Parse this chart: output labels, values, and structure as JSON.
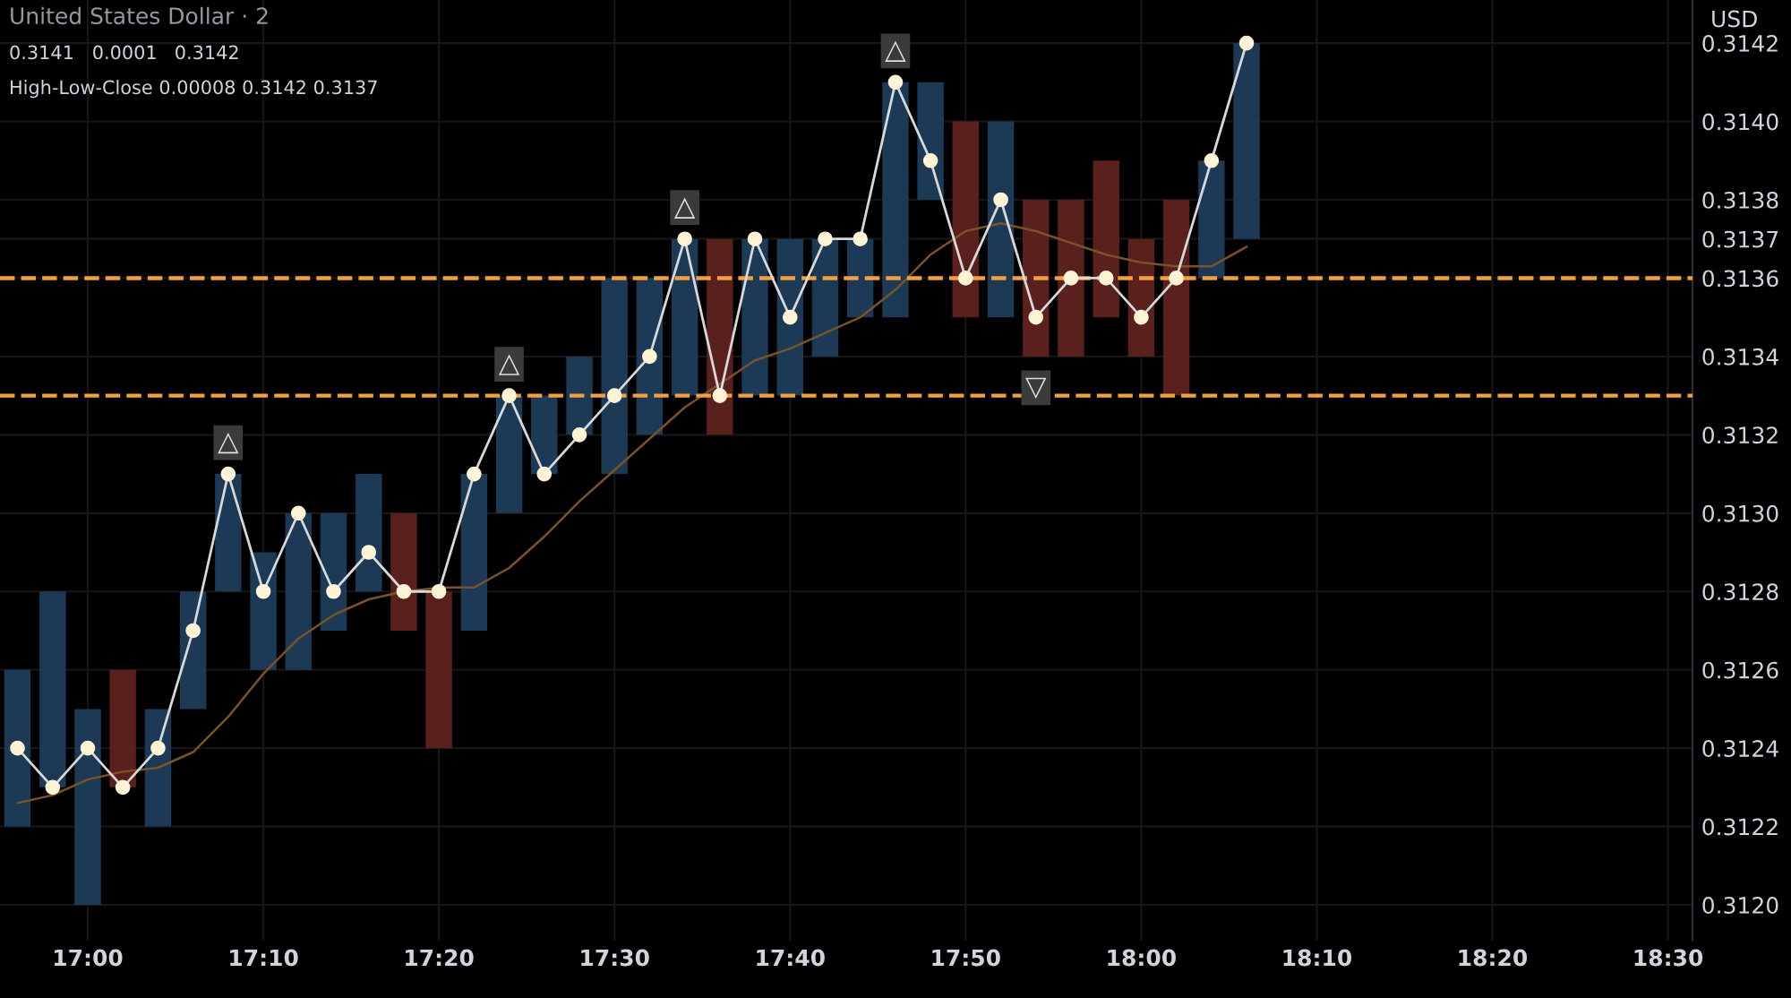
{
  "chart_data": {
    "type": "bar",
    "title": "United States Dollar · 2",
    "ylabel": "USD",
    "annotations": [
      "0.3141",
      "0.0001",
      "0.3142",
      "High-Low-Close 0.00008 0.3142 0.3137",
      {
        "text": "△",
        "x": 17.1333,
        "y": 0.31318
      },
      {
        "text": "△",
        "x": 17.4,
        "y": 0.31338
      },
      {
        "text": "△",
        "x": 17.5667,
        "y": 0.31378
      },
      {
        "text": "△",
        "x": 17.7667,
        "y": 0.31418
      },
      {
        "text": "▽",
        "x": 17.9,
        "y": 0.31332
      }
    ],
    "xlim": [
      16.9167,
      18.5233
    ],
    "xticks": [
      {
        "value": 17,
        "label": "17:00"
      },
      {
        "value": 17.1667,
        "label": "17:10"
      },
      {
        "value": 17.3333,
        "label": "17:20"
      },
      {
        "value": 17.5,
        "label": "17:30"
      },
      {
        "value": 17.6667,
        "label": "17:40"
      },
      {
        "value": 17.8333,
        "label": "17:50"
      },
      {
        "value": 18,
        "label": "18:00"
      },
      {
        "value": 18.1667,
        "label": "18:10"
      },
      {
        "value": 18.3333,
        "label": "18:20"
      },
      {
        "value": 18.5,
        "label": "18:30"
      }
    ],
    "ylim": [
      0.31191,
      0.31431
    ],
    "yticks": [
      {
        "value": 0.312,
        "label": "0.3120"
      },
      {
        "value": 0.3122,
        "label": "0.3122"
      },
      {
        "value": 0.3124,
        "label": "0.3124"
      },
      {
        "value": 0.3126,
        "label": "0.3126"
      },
      {
        "value": 0.3128,
        "label": "0.3128"
      },
      {
        "value": 0.313,
        "label": "0.3130"
      },
      {
        "value": 0.3132,
        "label": "0.3132"
      },
      {
        "value": 0.3134,
        "label": "0.3134"
      },
      {
        "value": 0.3136,
        "label": "0.3136"
      },
      {
        "value": 0.3137,
        "label": "0.3137"
      },
      {
        "value": 0.3138,
        "label": "0.3138"
      },
      {
        "value": 0.314,
        "label": "0.3140"
      },
      {
        "value": 0.3142,
        "label": "0.3142"
      }
    ],
    "grid": true,
    "ref_lines": [
      {
        "axis": "y",
        "value": 0.3136,
        "color": "#f0a040",
        "line_style": "dashed"
      },
      {
        "axis": "y",
        "value": 0.3133,
        "color": "#f0a040",
        "line_style": "dashed"
      }
    ],
    "series": [
      {
        "x": [
          16.9333,
          16.9667,
          17.0,
          17.0333,
          17.0667,
          17.1,
          17.1333,
          17.1667,
          17.2,
          17.2333,
          17.2667,
          17.3,
          17.3333,
          17.3667,
          17.4,
          17.4333,
          17.4667,
          17.5,
          17.5333,
          17.5667,
          17.6,
          17.6333,
          17.6667,
          17.7,
          17.7333,
          17.7667,
          17.8,
          17.8333,
          17.8667,
          17.9,
          17.9333,
          17.9667,
          18.0,
          18.0333,
          18.0667,
          18.1
        ],
        "base": [
          0.3122,
          0.3123,
          0.312,
          0.3123,
          0.3122,
          0.3125,
          0.3128,
          0.3126,
          0.3126,
          0.3127,
          0.3128,
          0.3127,
          0.3124,
          0.3127,
          0.313,
          0.3131,
          0.3132,
          0.3131,
          0.3132,
          0.3133,
          0.3132,
          0.3133,
          0.3133,
          0.3134,
          0.3135,
          0.3135,
          0.3138,
          0.3135,
          0.3135,
          0.3134,
          0.3134,
          0.3135,
          0.3134,
          0.3133,
          0.3136,
          0.3137
        ],
        "values": [
          0.0004,
          0.0005,
          0.0005,
          0.0003,
          0.0003,
          0.0003,
          0.0003,
          0.0003,
          0.0004,
          0.0003,
          0.0003,
          0.0003,
          0.0004,
          0.0004,
          0.0003,
          0.0002,
          0.0002,
          0.0005,
          0.0004,
          0.0004,
          0.0005,
          0.0004,
          0.0004,
          0.0003,
          0.0002,
          0.0006,
          0.0003,
          0.0005,
          0.0005,
          0.0004,
          0.0004,
          0.0004,
          0.0003,
          0.0005,
          0.0003,
          0.0005
        ],
        "colors": [
          "#1c3a56",
          "#1c3a56",
          "#1c3a56",
          "#5a201e",
          "#1c3a56",
          "#1c3a56",
          "#1c3a56",
          "#1c3a56",
          "#1c3a56",
          "#1c3a56",
          "#1c3a56",
          "#5a201e",
          "#5a201e",
          "#1c3a56",
          "#1c3a56",
          "#1c3a56",
          "#1c3a56",
          "#1c3a56",
          "#1c3a56",
          "#1c3a56",
          "#5a201e",
          "#1c3a56",
          "#1c3a56",
          "#1c3a56",
          "#1c3a56",
          "#1c3a56",
          "#1c3a56",
          "#5a201e",
          "#1c3a56",
          "#5a201e",
          "#5a201e",
          "#5a201e",
          "#5a201e",
          "#5a201e",
          "#1c3a56",
          "#1c3a56"
        ]
      },
      {
        "type": "line",
        "color": "#d8d8d8",
        "marker": "circle",
        "x": [
          16.9333,
          16.9667,
          17.0,
          17.0333,
          17.0667,
          17.1,
          17.1333,
          17.1667,
          17.2,
          17.2333,
          17.2667,
          17.3,
          17.3333,
          17.3667,
          17.4,
          17.4333,
          17.4667,
          17.5,
          17.5333,
          17.5667,
          17.6,
          17.6333,
          17.6667,
          17.7,
          17.7333,
          17.7667,
          17.8,
          17.8333,
          17.8667,
          17.9,
          17.9333,
          17.9667,
          18.0,
          18.0333,
          18.0667,
          18.1
        ],
        "values": [
          0.3124,
          0.3123,
          0.3124,
          0.3123,
          0.3124,
          0.3127,
          0.3131,
          0.3128,
          0.313,
          0.3128,
          0.3129,
          0.3128,
          0.3128,
          0.3131,
          0.3133,
          0.3131,
          0.3132,
          0.3133,
          0.3134,
          0.3137,
          0.3133,
          0.3137,
          0.3135,
          0.3137,
          0.3137,
          0.3141,
          0.3139,
          0.3136,
          0.3138,
          0.3135,
          0.3136,
          0.3136,
          0.3135,
          0.3136,
          0.3139,
          0.3142
        ]
      },
      {
        "type": "line",
        "color": "#7a5228",
        "x": [
          16.9333,
          16.9667,
          17.0,
          17.0333,
          17.0667,
          17.1,
          17.1333,
          17.1667,
          17.2,
          17.2333,
          17.2667,
          17.3,
          17.3333,
          17.3667,
          17.4,
          17.4333,
          17.4667,
          17.5,
          17.5333,
          17.5667,
          17.6,
          17.6333,
          17.6667,
          17.7,
          17.7333,
          17.7667,
          17.8,
          17.8333,
          17.8667,
          17.9,
          17.9333,
          17.9667,
          18.0,
          18.0333,
          18.0667,
          18.1
        ],
        "values": [
          0.31226,
          0.31228,
          0.31232,
          0.31234,
          0.31235,
          0.31239,
          0.31248,
          0.31259,
          0.31268,
          0.31274,
          0.31278,
          0.3128,
          0.31281,
          0.31281,
          0.31286,
          0.31294,
          0.31303,
          0.31311,
          0.31319,
          0.31327,
          0.31333,
          0.31339,
          0.31342,
          0.31346,
          0.3135,
          0.31357,
          0.31366,
          0.31372,
          0.31374,
          0.31372,
          0.31369,
          0.31366,
          0.31364,
          0.31363,
          0.31363,
          0.31368
        ]
      }
    ]
  }
}
